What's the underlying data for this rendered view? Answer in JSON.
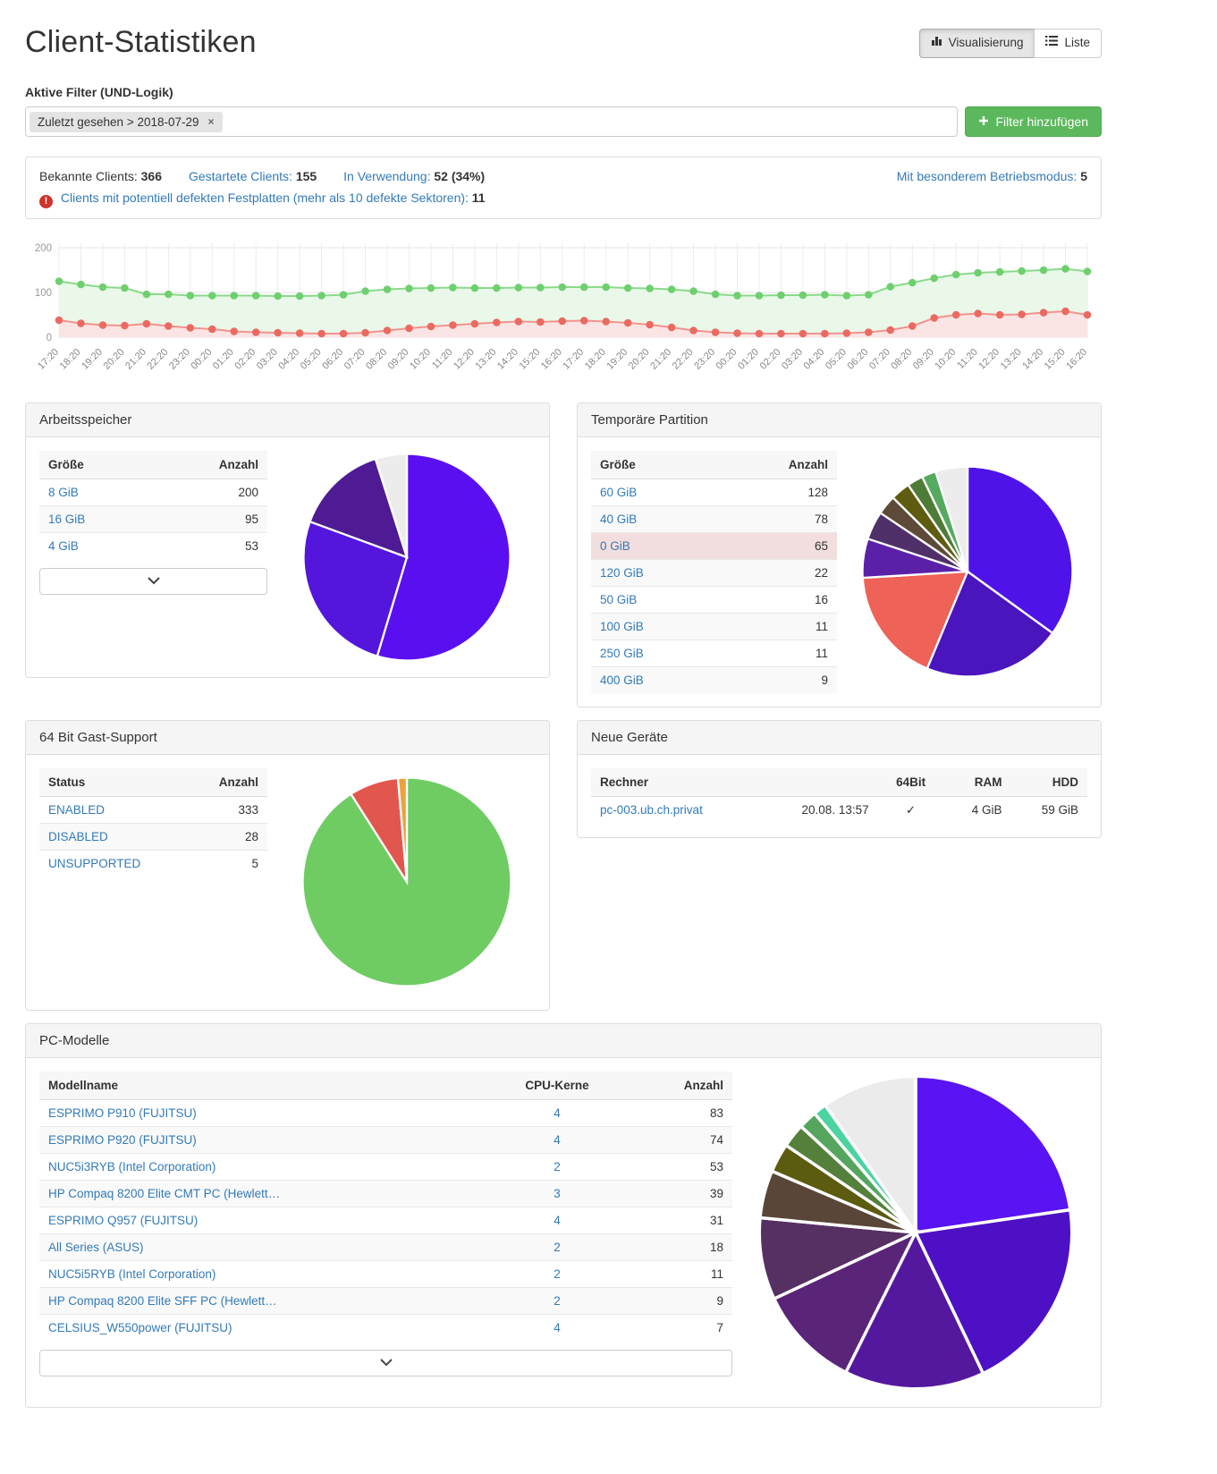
{
  "page": {
    "title": "Client-Statistiken"
  },
  "view_toggle": {
    "visualisierung": "Visualisierung",
    "liste": "Liste"
  },
  "filters": {
    "label": "Aktive Filter (UND-Logik)",
    "active": [
      {
        "text": "Zuletzt gesehen > 2018-07-29",
        "close": "×"
      }
    ],
    "add_button": "Filter hinzufügen"
  },
  "stats": {
    "known_label": "Bekannte Clients:",
    "known_value": "366",
    "started_label": "Gestartete Clients:",
    "started_value": "155",
    "inuse_label": "In Verwendung:",
    "inuse_value": "52 (34%)",
    "special_label": "Mit besonderem Betriebsmodus:",
    "special_value": "5",
    "warning_glyph": "!",
    "defect_label": "Clients mit potentiell defekten Festplatten (mehr als 10 defekte Sektoren):",
    "defect_value": "11"
  },
  "panels": {
    "ram": {
      "title": "Arbeitsspeicher"
    },
    "temp": {
      "title": "Temporäre Partition"
    },
    "guest64": {
      "title": "64 Bit Gast-Support"
    },
    "new_devices": {
      "title": "Neue Geräte"
    },
    "models": {
      "title": "PC-Modelle"
    }
  },
  "tables": {
    "ram": {
      "columns": [
        "Größe",
        "Anzahl"
      ],
      "align": [
        "l",
        "r"
      ],
      "link_cols": [
        0
      ],
      "rows": [
        [
          "8 GiB",
          "200"
        ],
        [
          "16 GiB",
          "95"
        ],
        [
          "4 GiB",
          "53"
        ]
      ]
    },
    "temp": {
      "columns": [
        "Größe",
        "Anzahl"
      ],
      "align": [
        "l",
        "r"
      ],
      "link_cols": [
        0
      ],
      "danger_rows": [
        2
      ],
      "rows": [
        [
          "60 GiB",
          "128"
        ],
        [
          "40 GiB",
          "78"
        ],
        [
          "0 GiB",
          "65"
        ],
        [
          "120 GiB",
          "22"
        ],
        [
          "50 GiB",
          "16"
        ],
        [
          "100 GiB",
          "11"
        ],
        [
          "250 GiB",
          "11"
        ],
        [
          "400 GiB",
          "9"
        ]
      ]
    },
    "guest64": {
      "columns": [
        "Status",
        "Anzahl"
      ],
      "align": [
        "l",
        "r"
      ],
      "link_cols": [
        0
      ],
      "rows": [
        [
          "ENABLED",
          "333"
        ],
        [
          "DISABLED",
          "28"
        ],
        [
          "UNSUPPORTED",
          "5"
        ]
      ]
    },
    "new_devices": {
      "columns": [
        "Rechner",
        "",
        "64Bit",
        "RAM",
        "HDD"
      ],
      "align": [
        "l",
        "r",
        "c",
        "r",
        "r"
      ],
      "link_cols": [
        0
      ],
      "rows": [
        [
          "pc-003.ub.ch.privat",
          "20.08. 13:57",
          "✓",
          "4 GiB",
          "59 GiB"
        ]
      ]
    },
    "models": {
      "columns": [
        "Modellname",
        "CPU-Kerne",
        "Anzahl"
      ],
      "align": [
        "l",
        "c",
        "r"
      ],
      "link_cols": [
        0,
        1
      ],
      "rows": [
        [
          "ESPRIMO P910 (FUJITSU)",
          "4",
          "83"
        ],
        [
          "ESPRIMO P920 (FUJITSU)",
          "4",
          "74"
        ],
        [
          "NUC5i3RYB (Intel Corporation)",
          "2",
          "53"
        ],
        [
          "HP Compaq 8200 Elite CMT PC (Hewlett…",
          "3",
          "39"
        ],
        [
          "ESPRIMO Q957 (FUJITSU)",
          "4",
          "31"
        ],
        [
          "All Series (ASUS)",
          "2",
          "18"
        ],
        [
          "NUC5i5RYB (Intel Corporation)",
          "2",
          "11"
        ],
        [
          "HP Compaq 8200 Elite SFF PC (Hewlett…",
          "2",
          "9"
        ],
        [
          "CELSIUS_W550power (FUJITSU)",
          "4",
          "7"
        ]
      ]
    }
  },
  "chart_data": [
    {
      "id": "timeline",
      "type": "area",
      "title": "",
      "ylim": [
        0,
        200
      ],
      "yticks": [
        0,
        100,
        200
      ],
      "grid": true,
      "legend": "none",
      "x": [
        "17:20",
        "18:20",
        "19:20",
        "20:20",
        "21:20",
        "22:20",
        "23:20",
        "00:20",
        "01:20",
        "02:20",
        "03:20",
        "04:20",
        "05:20",
        "06:20",
        "07:20",
        "08:20",
        "09:20",
        "10:20",
        "11:20",
        "12:20",
        "13:20",
        "14:20",
        "15:20",
        "16:20",
        "17:20",
        "18:20",
        "19:20",
        "20:20",
        "21:20",
        "22:20",
        "23:20",
        "00:20",
        "01:20",
        "02:20",
        "03:20",
        "04:20",
        "05:20",
        "06:20",
        "07:20",
        "08:20",
        "09:20",
        "10:20",
        "11:20",
        "12:20",
        "13:20",
        "14:20",
        "15:20",
        "16:20"
      ],
      "series": [
        {
          "name": "gestartete-clients",
          "color": "#8ada8a",
          "point_color": "#6fcf6f",
          "fill": "#e9f8e9",
          "values": [
            125,
            118,
            112,
            110,
            96,
            96,
            93,
            93,
            93,
            93,
            92,
            92,
            93,
            95,
            103,
            107,
            109,
            110,
            111,
            110,
            110,
            111,
            111,
            112,
            112,
            112,
            110,
            109,
            107,
            103,
            96,
            93,
            93,
            94,
            94,
            95,
            93,
            95,
            113,
            122,
            132,
            140,
            144,
            146,
            148,
            150,
            153,
            147
          ]
        },
        {
          "name": "clients-in-verwendung",
          "color": "#f2938f",
          "point_color": "#ea6a62",
          "fill": "#fbe5e4",
          "values": [
            38,
            31,
            27,
            26,
            30,
            25,
            21,
            18,
            13,
            11,
            10,
            9,
            8,
            8,
            10,
            15,
            20,
            24,
            27,
            30,
            33,
            35,
            34,
            36,
            37,
            35,
            32,
            28,
            22,
            15,
            11,
            9,
            8,
            8,
            8,
            8,
            9,
            11,
            16,
            25,
            43,
            50,
            53,
            50,
            51,
            55,
            58,
            50
          ]
        }
      ]
    },
    {
      "id": "ram",
      "type": "pie",
      "title": "Arbeitsspeicher",
      "labels": [
        "8 GiB",
        "16 GiB",
        "4 GiB",
        ""
      ],
      "values": [
        200,
        95,
        53,
        18
      ],
      "colors": [
        "#5a0ff0",
        "#5415dd",
        "#4e1b94",
        "#ececec"
      ]
    },
    {
      "id": "temp_partition",
      "type": "pie",
      "title": "Temporäre Partition",
      "labels": [
        "60 GiB",
        "40 GiB",
        "0 GiB",
        "120 GiB",
        "50 GiB",
        "100 GiB",
        "250 GiB",
        "400 GiB",
        "",
        ""
      ],
      "values": [
        128,
        78,
        65,
        22,
        16,
        11,
        11,
        9,
        8,
        18
      ],
      "colors": [
        "#4f13ea",
        "#4a15bd",
        "#ee6257",
        "#5a21a8",
        "#503069",
        "#5d4a38",
        "#5e5c11",
        "#4e7c36",
        "#55aa5f",
        "#ececec"
      ]
    },
    {
      "id": "guest64",
      "type": "pie",
      "title": "64 Bit Gast-Support",
      "labels": [
        "ENABLED",
        "DISABLED",
        "UNSUPPORTED"
      ],
      "values": [
        333,
        28,
        5
      ],
      "colors": [
        "#6ecc63",
        "#e2574d",
        "#eda23e"
      ]
    },
    {
      "id": "pc_models",
      "type": "pie",
      "title": "PC-Modelle",
      "labels": [
        "ESPRIMO P910 (FUJITSU)",
        "ESPRIMO P920 (FUJITSU)",
        "NUC5i3RYB (Intel Corporation)",
        "HP Compaq 8200 Elite CMT PC (Hewlett…",
        "ESPRIMO Q957 (FUJITSU)",
        "All Series (ASUS)",
        "NUC5i5RYB (Intel Corporation)",
        "HP Compaq 8200 Elite SFF PC (Hewlett…",
        "CELSIUS_W550power (FUJITSU)",
        "",
        ""
      ],
      "values": [
        83,
        74,
        53,
        39,
        31,
        18,
        11,
        9,
        7,
        5,
        36
      ],
      "colors": [
        "#5a13f2",
        "#4e10c4",
        "#54189e",
        "#5a2478",
        "#563063",
        "#5a4638",
        "#5c5c10",
        "#55803b",
        "#55a55f",
        "#4bd3a0",
        "#ebebeb"
      ]
    }
  ]
}
